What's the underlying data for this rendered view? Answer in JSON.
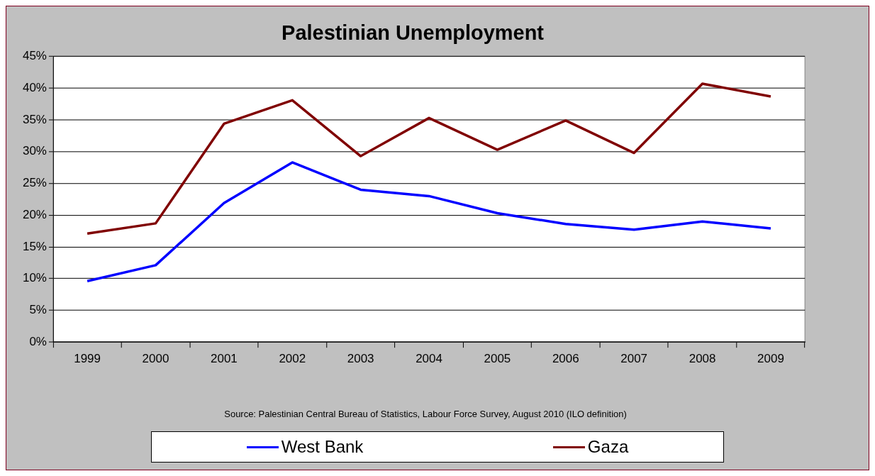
{
  "chart_data": {
    "type": "line",
    "title": "Palestinian Unemployment",
    "categories": [
      "1999",
      "2000",
      "2001",
      "2002",
      "2003",
      "2004",
      "2005",
      "2006",
      "2007",
      "2008",
      "2009"
    ],
    "series": [
      {
        "name": "West Bank",
        "color": "#0000ff",
        "values": [
          9.6,
          12.1,
          21.9,
          28.3,
          24.0,
          23.0,
          20.3,
          18.6,
          17.7,
          19.0,
          17.9
        ]
      },
      {
        "name": "Gaza",
        "color": "#800000",
        "values": [
          17.1,
          18.7,
          34.4,
          38.1,
          29.3,
          35.3,
          30.3,
          34.9,
          29.8,
          40.7,
          38.7
        ]
      }
    ],
    "ylim": [
      0,
      45
    ],
    "yticks": [
      {
        "value": 0,
        "label": "0%"
      },
      {
        "value": 5,
        "label": "5%"
      },
      {
        "value": 10,
        "label": "10%"
      },
      {
        "value": 15,
        "label": "15%"
      },
      {
        "value": 20,
        "label": "20%"
      },
      {
        "value": 25,
        "label": "25%"
      },
      {
        "value": 30,
        "label": "30%"
      },
      {
        "value": 35,
        "label": "35%"
      },
      {
        "value": 40,
        "label": "40%"
      },
      {
        "value": 45,
        "label": "45%"
      }
    ],
    "grid": "y",
    "legend": "bottom",
    "marker": "none",
    "line_style": "solid",
    "annotations": [
      "Source: Palestinian Central Bureau of Statistics, Labour Force Survey, August 2010 (ILO definition)"
    ]
  }
}
